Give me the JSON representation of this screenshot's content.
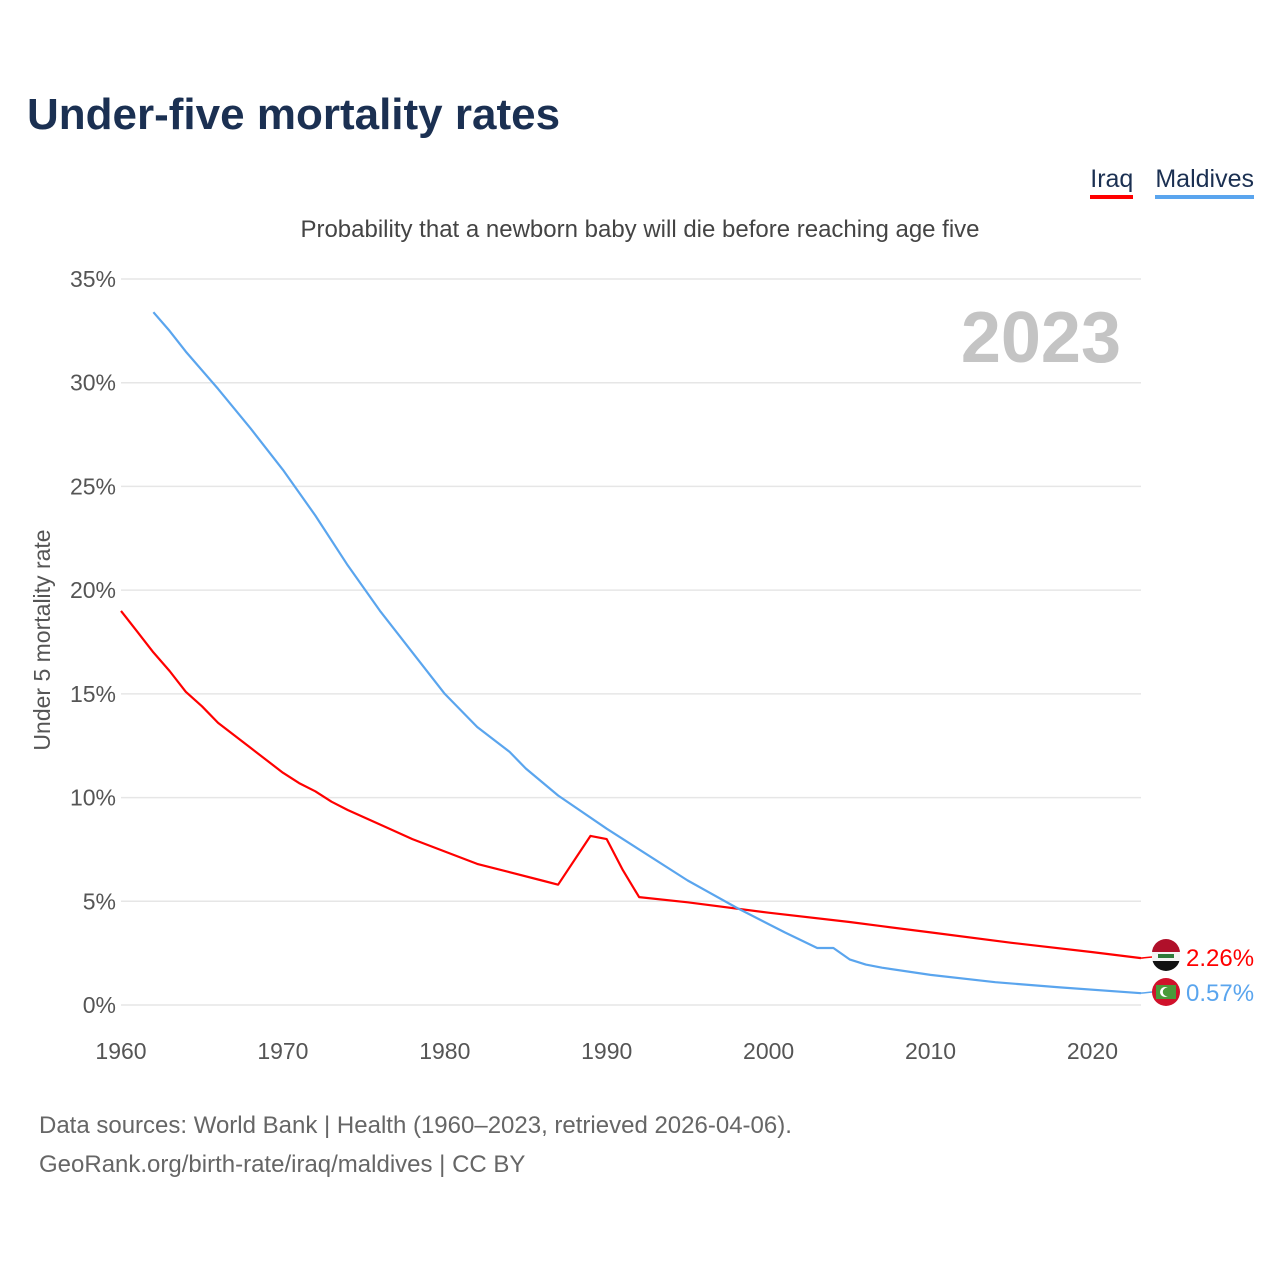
{
  "title": "Under-five mortality rates",
  "subtitle": "Probability that a newborn baby will die before reaching age five",
  "legend": [
    {
      "label": "Iraq",
      "color": "#ff0000"
    },
    {
      "label": "Maldives",
      "color": "#5aa5ee"
    }
  ],
  "footer": {
    "line1": "Data sources: World Bank | Health (1960–2023, retrieved 2026-04-06).",
    "line2": "GeoRank.org/birth-rate/iraq/maldives | CC BY"
  },
  "chart_data": {
    "type": "line",
    "title": "Under-five mortality rates",
    "ylabel": "Under 5 mortality rate",
    "xlabel": "",
    "year_label": "2023",
    "xlim": [
      1960,
      2023
    ],
    "ylim": [
      0,
      35
    ],
    "x_ticks": [
      "1960",
      "1970",
      "1980",
      "1990",
      "2000",
      "2010",
      "2020"
    ],
    "y_ticks": [
      "0%",
      "5%",
      "10%",
      "15%",
      "20%",
      "25%",
      "30%",
      "35%"
    ],
    "grid": true,
    "series": [
      {
        "name": "Iraq",
        "color": "#ff0000",
        "end_label": "2.26%",
        "x": [
          1960,
          1961,
          1962,
          1963,
          1964,
          1965,
          1966,
          1968,
          1970,
          1971,
          1972,
          1973,
          1974,
          1976,
          1978,
          1980,
          1982,
          1984,
          1986,
          1987,
          1989,
          1990,
          1991,
          1992,
          1995,
          2000,
          2005,
          2007,
          2010,
          2015,
          2020,
          2023
        ],
        "y": [
          19.0,
          18.0,
          17.0,
          16.1,
          15.1,
          14.4,
          13.6,
          12.4,
          11.2,
          10.7,
          10.3,
          9.8,
          9.4,
          8.7,
          8.0,
          7.4,
          6.8,
          6.4,
          6.0,
          5.8,
          8.15,
          8.0,
          6.5,
          5.2,
          4.95,
          4.45,
          4.0,
          3.8,
          3.5,
          3.0,
          2.55,
          2.26
        ]
      },
      {
        "name": "Maldives",
        "color": "#5aa5ee",
        "end_label": "0.57%",
        "x": [
          1962,
          1963,
          1964,
          1966,
          1968,
          1970,
          1972,
          1974,
          1976,
          1978,
          1980,
          1982,
          1984,
          1985,
          1987,
          1990,
          1992,
          1995,
          1998,
          2000,
          2001,
          2003,
          2004,
          2005,
          2006,
          2007,
          2010,
          2014,
          2018,
          2023
        ],
        "y": [
          33.4,
          32.5,
          31.5,
          29.7,
          27.8,
          25.8,
          23.6,
          21.2,
          19.0,
          17.0,
          15.0,
          13.4,
          12.2,
          11.4,
          10.1,
          8.5,
          7.5,
          6.0,
          4.7,
          3.9,
          3.5,
          2.75,
          2.75,
          2.2,
          1.95,
          1.8,
          1.45,
          1.1,
          0.85,
          0.57
        ]
      }
    ]
  }
}
